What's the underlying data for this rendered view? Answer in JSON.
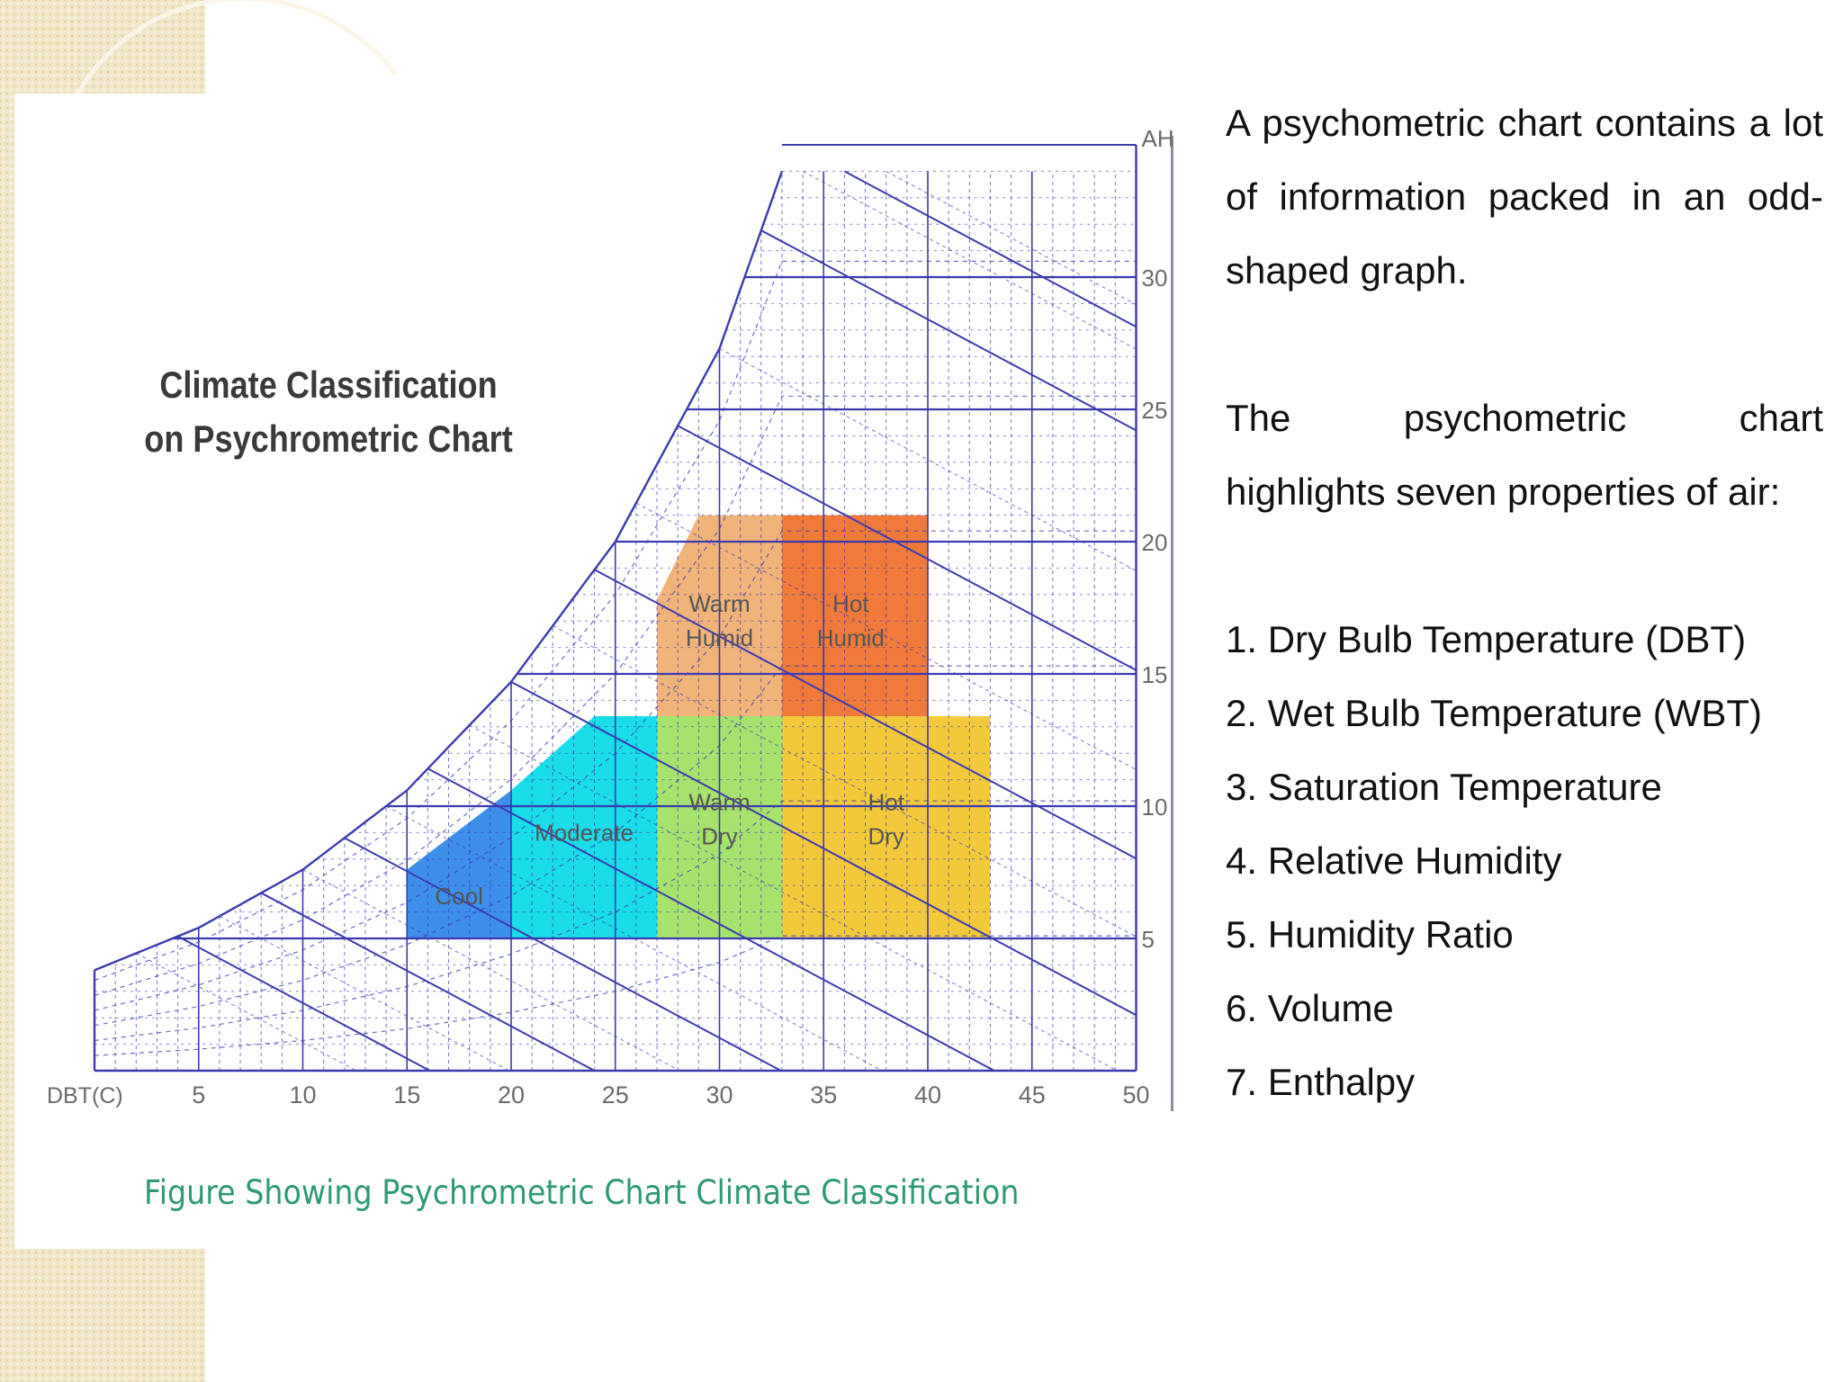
{
  "slide": {
    "paragraph_1": "A psychometric chart contains a lot of information packed in an odd-shaped graph.",
    "paragraph_2_line_1": "The psychometric chart",
    "paragraph_2_line_2": "highlights seven properties of air:",
    "properties": [
      "1. Dry Bulb Temperature (DBT)",
      "2. Wet Bulb Temperature (WBT)",
      "3. Saturation Temperature",
      "4. Relative Humidity",
      "5. Humidity Ratio",
      "6. Volume",
      "7. Enthalpy"
    ]
  },
  "chart_data": {
    "type": "area",
    "title": "Climate Classification on Psychrometric Chart",
    "title_lines": [
      "Climate Classification",
      "on Psychrometric Chart"
    ],
    "caption": "Figure Showing Psychrometric Chart Climate Classification",
    "xlabel": "DBT(C)",
    "ylabel": "AH",
    "x_ticks": [
      5,
      10,
      15,
      20,
      25,
      30,
      35,
      40,
      45,
      50
    ],
    "y_ticks": [
      5,
      10,
      15,
      20,
      25,
      30
    ],
    "xlim": [
      0,
      50
    ],
    "ylim": [
      0,
      35
    ],
    "saturation_curve": [
      [
        0,
        3.8
      ],
      [
        5,
        5.4
      ],
      [
        10,
        7.6
      ],
      [
        15,
        10.6
      ],
      [
        20,
        14.7
      ],
      [
        25,
        20.0
      ],
      [
        30,
        27.3
      ],
      [
        33,
        34
      ]
    ],
    "zones": [
      {
        "name": "Cool",
        "label_lines": [
          "Cool"
        ],
        "color": "#3d8fea",
        "polygon": [
          [
            15,
            5
          ],
          [
            15,
            7.6
          ],
          [
            20,
            10.6
          ],
          [
            20,
            5
          ]
        ]
      },
      {
        "name": "Moderate",
        "label_lines": [
          "Moderate"
        ],
        "color": "#19dde8",
        "polygon": [
          [
            20,
            5
          ],
          [
            20,
            10.6
          ],
          [
            24,
            13.4
          ],
          [
            27,
            13.4
          ],
          [
            27,
            5
          ]
        ]
      },
      {
        "name": "Warm Dry",
        "label_lines": [
          "Warm",
          "Dry"
        ],
        "color": "#a6e36d",
        "polygon": [
          [
            27,
            5
          ],
          [
            27,
            13.4
          ],
          [
            33,
            13.4
          ],
          [
            33,
            5
          ]
        ]
      },
      {
        "name": "Hot Dry",
        "label_lines": [
          "Hot",
          "Dry"
        ],
        "color": "#f3c93c",
        "polygon": [
          [
            33,
            5
          ],
          [
            33,
            13.4
          ],
          [
            43,
            13.4
          ],
          [
            43,
            5
          ]
        ]
      },
      {
        "name": "Warm Humid",
        "label_lines": [
          "Warm",
          "Humid"
        ],
        "color": "#f0b37a",
        "polygon": [
          [
            27,
            13.4
          ],
          [
            27,
            17.8
          ],
          [
            29,
            21
          ],
          [
            33,
            21
          ],
          [
            33,
            13.4
          ]
        ]
      },
      {
        "name": "Hot Humid",
        "label_lines": [
          "Hot",
          "Humid"
        ],
        "color": "#f07a3a",
        "polygon": [
          [
            33,
            13.4
          ],
          [
            33,
            21
          ],
          [
            40,
            21
          ],
          [
            40,
            13.4
          ]
        ]
      }
    ],
    "grid": true,
    "colors": {
      "grid": "#3b3bb0",
      "axis_text": "#6a6a6a"
    }
  }
}
